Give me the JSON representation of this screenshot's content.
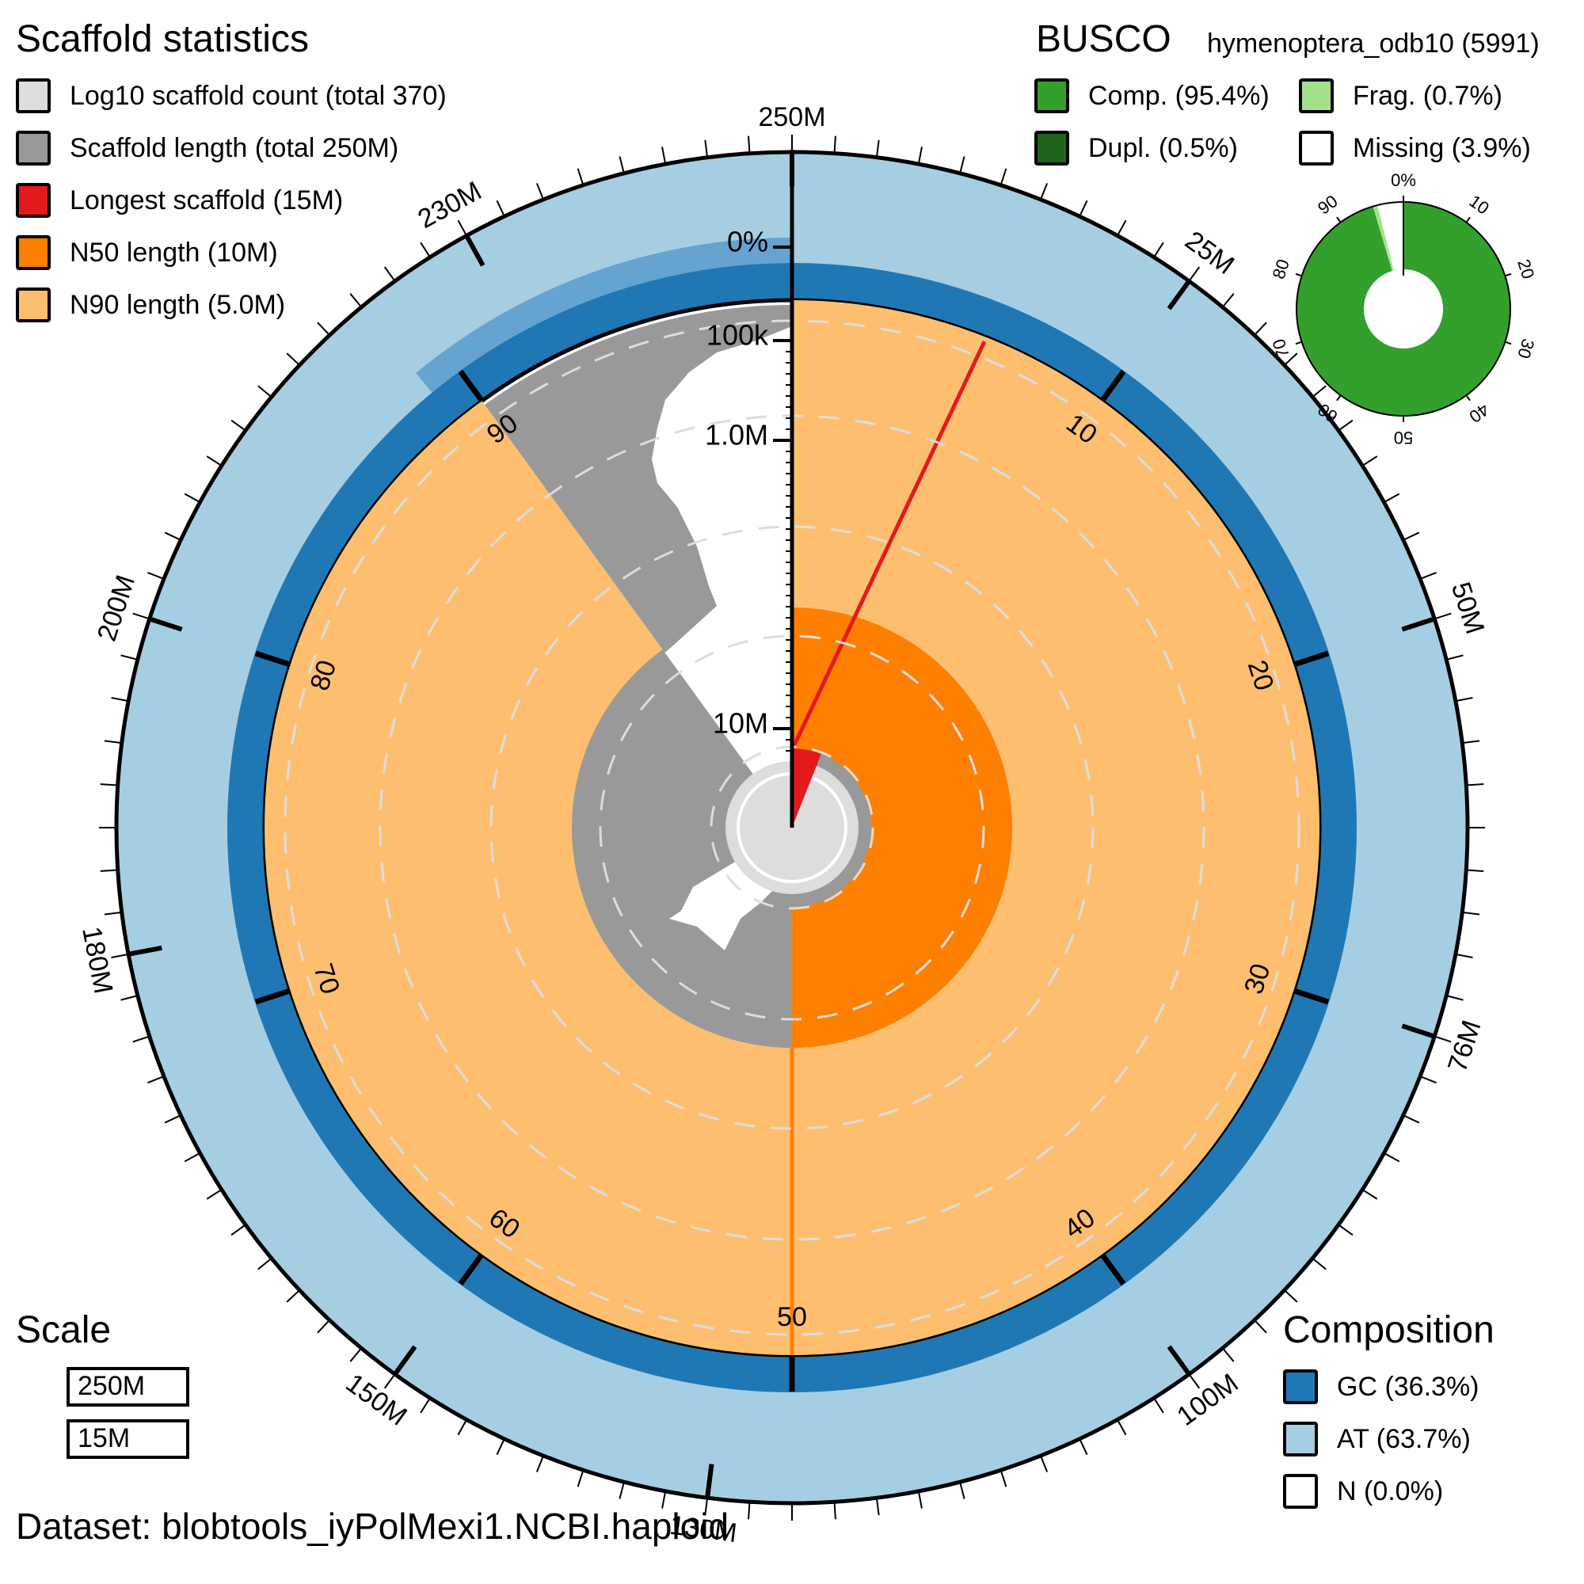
{
  "scaffold_stats": {
    "title": "Scaffold statistics",
    "legend": [
      {
        "label": "Log10 scaffold count (total 370)",
        "color": "#dddddd"
      },
      {
        "label": "Scaffold length (total 250M)",
        "color": "#999999"
      },
      {
        "label": "Longest scaffold (15M)",
        "color": "#e31a1c"
      },
      {
        "label": "N50 length (10M)",
        "color": "#ff7f00"
      },
      {
        "label": "N90 length (5.0M)",
        "color": "#fdbf6f"
      }
    ]
  },
  "busco": {
    "title": "BUSCO",
    "lineage": "hymenoptera_odb10 (5991)",
    "legend": [
      {
        "label": "Comp. (95.4%)",
        "color": "#33a02c"
      },
      {
        "label": "Frag. (0.7%)",
        "color": "#a3e28b"
      },
      {
        "label": "Dupl. (0.5%)",
        "color": "#20641c"
      },
      {
        "label": "Missing (3.9%)",
        "color": "#ffffff"
      }
    ],
    "ring_ticks": [
      "0%",
      "10",
      "20",
      "30",
      "40",
      "50",
      "60",
      "70",
      "80",
      "90"
    ]
  },
  "scale": {
    "title": "Scale",
    "items": [
      "250M",
      "15M"
    ]
  },
  "composition": {
    "title": "Composition",
    "legend": [
      {
        "label": "GC (36.3%)",
        "color": "#1f78b4"
      },
      {
        "label": "AT (63.7%)",
        "color": "#a6cee3"
      },
      {
        "label": "N (0.0%)",
        "color": "#ffffff"
      }
    ]
  },
  "dataset_label": "Dataset: blobtools_iyPolMexi1.NCBI.haploid",
  "chart_data": [
    {
      "type": "snail",
      "total_length": "250M",
      "scaffold_count": 370,
      "longest_scaffold": "15M",
      "n50": "10M",
      "n90": "5.0M",
      "n50_percent": 50,
      "n90_percent": 90,
      "longest_percent": 6,
      "outer_length_ticks": [
        "25M",
        "50M",
        "76M",
        "100M",
        "130M",
        "150M",
        "180M",
        "200M",
        "230M",
        "250M"
      ],
      "outer_length_tick_percents": [
        10,
        20,
        30,
        40,
        52,
        60,
        72,
        80,
        92,
        100
      ],
      "percent_ticks": [
        "10",
        "20",
        "30",
        "40",
        "50",
        "60",
        "70",
        "80",
        "90"
      ],
      "radial_ticks": [
        "0%",
        "100k",
        "1.0M",
        "10M"
      ],
      "gc_percent": 36.3,
      "at_percent": 63.7,
      "n_percent": 0.0,
      "colors": {
        "count": "#dddddd",
        "length": "#999999",
        "longest": "#e31a1c",
        "n50": "#ff7f00",
        "n90": "#fdbf6f",
        "gc": "#1f78b4",
        "at": "#a6cee3"
      }
    },
    {
      "type": "pie",
      "title": "BUSCO",
      "categories": [
        "Complete",
        "Fragmented",
        "Missing"
      ],
      "values": [
        95.4,
        0.7,
        3.9
      ],
      "duplicated": 0.5,
      "colors": [
        "#33a02c",
        "#a3e28b",
        "#ffffff"
      ]
    }
  ]
}
